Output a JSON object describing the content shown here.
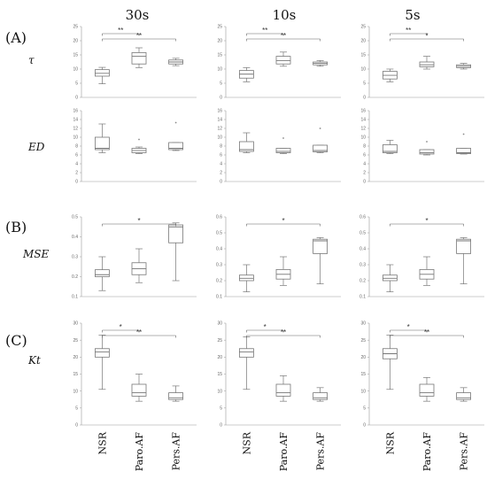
{
  "columns": [
    "30s",
    "10s",
    "5s"
  ],
  "sections": [
    "(A)",
    "(B)",
    "(C)"
  ],
  "categories": [
    "NSR",
    "Paro.AF",
    "Pers.AF"
  ],
  "colors": {
    "box": "#777777",
    "axis": "#999999",
    "text": "#111111"
  },
  "chart_data": [
    {
      "type": "box",
      "row_label": "τ",
      "column": "30s",
      "yticks": [
        0,
        5,
        10,
        15,
        20,
        25
      ],
      "ylim": [
        0,
        25
      ],
      "boxes": [
        {
          "min": 4.8,
          "q1": 7.5,
          "median": 8.5,
          "q3": 9.8,
          "max": 10.6
        },
        {
          "min": 10.5,
          "q1": 11.8,
          "median": 14.5,
          "q3": 15.8,
          "max": 17.5
        },
        {
          "min": 11.2,
          "q1": 11.8,
          "median": 12.5,
          "q3": 13.2,
          "max": 13.8
        }
      ],
      "outliers": [
        [],
        [],
        []
      ],
      "significance": [
        {
          "from": 0,
          "to": 1,
          "label": "**"
        },
        {
          "from": 0,
          "to": 2,
          "label": "**"
        }
      ]
    },
    {
      "type": "box",
      "row_label": "τ",
      "column": "10s",
      "yticks": [
        0,
        5,
        10,
        15,
        20,
        25
      ],
      "ylim": [
        0,
        25
      ],
      "boxes": [
        {
          "min": 5.5,
          "q1": 6.8,
          "median": 8.2,
          "q3": 9.5,
          "max": 10.5
        },
        {
          "min": 11.0,
          "q1": 11.8,
          "median": 13.0,
          "q3": 14.5,
          "max": 16.0
        },
        {
          "min": 11.0,
          "q1": 11.5,
          "median": 12.0,
          "q3": 12.5,
          "max": 13.0
        }
      ],
      "outliers": [
        [],
        [],
        []
      ],
      "significance": [
        {
          "from": 0,
          "to": 1,
          "label": "**"
        },
        {
          "from": 0,
          "to": 2,
          "label": "**"
        }
      ]
    },
    {
      "type": "box",
      "row_label": "τ",
      "column": "5s",
      "yticks": [
        0,
        5,
        10,
        15,
        20,
        25
      ],
      "ylim": [
        0,
        25
      ],
      "boxes": [
        {
          "min": 5.5,
          "q1": 6.5,
          "median": 7.8,
          "q3": 9.2,
          "max": 10.0
        },
        {
          "min": 10.0,
          "q1": 10.8,
          "median": 11.5,
          "q3": 12.5,
          "max": 14.5
        },
        {
          "min": 10.0,
          "q1": 10.5,
          "median": 11.0,
          "q3": 11.5,
          "max": 12.0
        }
      ],
      "outliers": [
        [],
        [],
        []
      ],
      "significance": [
        {
          "from": 0,
          "to": 1,
          "label": "**"
        },
        {
          "from": 0,
          "to": 2,
          "label": "*"
        }
      ]
    },
    {
      "type": "box",
      "row_label": "ED",
      "column": "30s",
      "yticks": [
        0,
        2,
        4,
        6,
        8,
        10,
        12,
        14,
        16
      ],
      "ylim": [
        0,
        16
      ],
      "boxes": [
        {
          "min": 6.5,
          "q1": 7.2,
          "median": 7.5,
          "q3": 10.0,
          "max": 13.0
        },
        {
          "min": 6.3,
          "q1": 6.5,
          "median": 7.0,
          "q3": 7.5,
          "max": 7.8
        },
        {
          "min": 7.0,
          "q1": 7.2,
          "median": 7.5,
          "q3": 8.8,
          "max": 8.8
        }
      ],
      "outliers": [
        [],
        [
          9.5
        ],
        [
          13.3
        ]
      ],
      "significance": []
    },
    {
      "type": "box",
      "row_label": "ED",
      "column": "10s",
      "yticks": [
        0,
        2,
        4,
        6,
        8,
        10,
        12,
        14,
        16
      ],
      "ylim": [
        0,
        16
      ],
      "boxes": [
        {
          "min": 6.5,
          "q1": 6.8,
          "median": 7.2,
          "q3": 9.0,
          "max": 11.0
        },
        {
          "min": 6.3,
          "q1": 6.5,
          "median": 6.8,
          "q3": 7.5,
          "max": 7.5
        },
        {
          "min": 6.5,
          "q1": 6.7,
          "median": 7.0,
          "q3": 8.2,
          "max": 8.2
        }
      ],
      "outliers": [
        [],
        [
          9.8
        ],
        [
          12.0
        ]
      ],
      "significance": []
    },
    {
      "type": "box",
      "row_label": "ED",
      "column": "5s",
      "yticks": [
        0,
        2,
        4,
        6,
        8,
        10,
        12,
        14,
        16
      ],
      "ylim": [
        0,
        16
      ],
      "boxes": [
        {
          "min": 6.3,
          "q1": 6.5,
          "median": 6.8,
          "q3": 8.3,
          "max": 9.3
        },
        {
          "min": 6.0,
          "q1": 6.2,
          "median": 6.5,
          "q3": 7.2,
          "max": 7.2
        },
        {
          "min": 6.2,
          "q1": 6.3,
          "median": 6.5,
          "q3": 7.5,
          "max": 7.5
        }
      ],
      "outliers": [
        [],
        [
          9.0
        ],
        [
          10.7
        ]
      ],
      "significance": []
    },
    {
      "type": "box",
      "row_label": "MSE",
      "column": "30s",
      "yticks": [
        0.1,
        0.2,
        0.3,
        0.4,
        0.5
      ],
      "ylim": [
        0.1,
        0.5
      ],
      "boxes": [
        {
          "min": 0.13,
          "q1": 0.2,
          "median": 0.21,
          "q3": 0.235,
          "max": 0.3
        },
        {
          "min": 0.17,
          "q1": 0.21,
          "median": 0.24,
          "q3": 0.27,
          "max": 0.34
        },
        {
          "min": 0.18,
          "q1": 0.37,
          "median": 0.45,
          "q3": 0.46,
          "max": 0.47
        }
      ],
      "outliers": [
        [],
        [],
        []
      ],
      "significance": [
        {
          "from": 0,
          "to": 2,
          "label": "*"
        }
      ]
    },
    {
      "type": "box",
      "row_label": "MSE",
      "column": "10s",
      "yticks": [
        0.1,
        0.2,
        0.3,
        0.4,
        0.5,
        0.6
      ],
      "ylim": [
        0.1,
        0.6
      ],
      "boxes": [
        {
          "min": 0.13,
          "q1": 0.2,
          "median": 0.215,
          "q3": 0.235,
          "max": 0.3
        },
        {
          "min": 0.17,
          "q1": 0.21,
          "median": 0.24,
          "q3": 0.27,
          "max": 0.35
        },
        {
          "min": 0.18,
          "q1": 0.37,
          "median": 0.45,
          "q3": 0.46,
          "max": 0.47
        }
      ],
      "outliers": [
        [],
        [],
        []
      ],
      "significance": [
        {
          "from": 0,
          "to": 2,
          "label": "*"
        }
      ]
    },
    {
      "type": "box",
      "row_label": "MSE",
      "column": "5s",
      "yticks": [
        0.1,
        0.2,
        0.3,
        0.4,
        0.5,
        0.6
      ],
      "ylim": [
        0.1,
        0.6
      ],
      "boxes": [
        {
          "min": 0.13,
          "q1": 0.2,
          "median": 0.215,
          "q3": 0.235,
          "max": 0.3
        },
        {
          "min": 0.17,
          "q1": 0.21,
          "median": 0.24,
          "q3": 0.27,
          "max": 0.35
        },
        {
          "min": 0.18,
          "q1": 0.37,
          "median": 0.45,
          "q3": 0.46,
          "max": 0.47
        }
      ],
      "outliers": [
        [],
        [],
        []
      ],
      "significance": [
        {
          "from": 0,
          "to": 2,
          "label": "*"
        }
      ]
    },
    {
      "type": "box",
      "row_label": "Kt",
      "column": "30s",
      "yticks": [
        0,
        5,
        10,
        15,
        20,
        25,
        30
      ],
      "ylim": [
        0,
        30
      ],
      "boxes": [
        {
          "min": 10.5,
          "q1": 20.0,
          "median": 21.5,
          "q3": 22.5,
          "max": 26.5
        },
        {
          "min": 7.0,
          "q1": 8.5,
          "median": 9.5,
          "q3": 12.0,
          "max": 15.0
        },
        {
          "min": 7.0,
          "q1": 7.5,
          "median": 8.0,
          "q3": 9.5,
          "max": 11.5
        }
      ],
      "outliers": [
        [],
        [],
        []
      ],
      "significance": [
        {
          "from": 0,
          "to": 1,
          "label": "*"
        },
        {
          "from": 0,
          "to": 2,
          "label": "**"
        }
      ]
    },
    {
      "type": "box",
      "row_label": "Kt",
      "column": "10s",
      "yticks": [
        0,
        5,
        10,
        15,
        20,
        25,
        30
      ],
      "ylim": [
        0,
        30
      ],
      "boxes": [
        {
          "min": 10.5,
          "q1": 20.0,
          "median": 21.5,
          "q3": 22.5,
          "max": 26.0
        },
        {
          "min": 7.0,
          "q1": 8.5,
          "median": 9.5,
          "q3": 12.0,
          "max": 14.5
        },
        {
          "min": 7.0,
          "q1": 7.5,
          "median": 8.0,
          "q3": 9.5,
          "max": 11.0
        }
      ],
      "outliers": [
        [],
        [],
        []
      ],
      "significance": [
        {
          "from": 0,
          "to": 1,
          "label": "*"
        },
        {
          "from": 0,
          "to": 2,
          "label": "**"
        }
      ]
    },
    {
      "type": "box",
      "row_label": "Kt",
      "column": "5s",
      "yticks": [
        0,
        5,
        10,
        15,
        20,
        25,
        30
      ],
      "ylim": [
        0,
        30
      ],
      "boxes": [
        {
          "min": 10.5,
          "q1": 19.5,
          "median": 21.0,
          "q3": 22.5,
          "max": 26.5
        },
        {
          "min": 7.0,
          "q1": 8.5,
          "median": 9.5,
          "q3": 12.0,
          "max": 14.0
        },
        {
          "min": 7.0,
          "q1": 7.5,
          "median": 8.0,
          "q3": 9.5,
          "max": 11.0
        }
      ],
      "outliers": [
        [],
        [],
        []
      ],
      "significance": [
        {
          "from": 0,
          "to": 1,
          "label": "*"
        },
        {
          "from": 0,
          "to": 2,
          "label": "**"
        }
      ]
    }
  ]
}
